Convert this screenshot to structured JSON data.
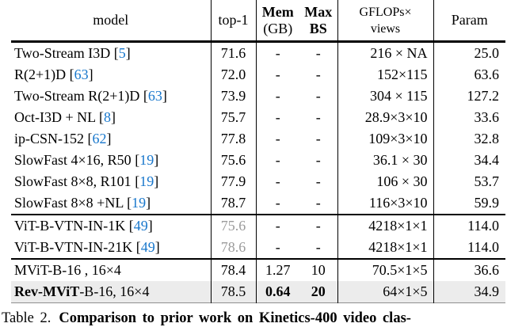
{
  "table": {
    "header": {
      "model": "model",
      "top1": "top-1",
      "mem_line1": "Mem",
      "mem_line2": "(GB)",
      "max_line1": "Max",
      "max_line2": "BS",
      "gflops_line1": "GFLOPs×",
      "gflops_line2": "views",
      "param": "Param"
    },
    "cite_brackets": {
      "open": "[",
      "close": "]"
    },
    "rows": [
      {
        "model": "Two-Stream I3D ",
        "cite": "5",
        "top1": "71.6",
        "mem": "-",
        "bs": "-",
        "gflops": "216 × NA",
        "param": "25.0"
      },
      {
        "model": "R(2+1)D ",
        "cite": "63",
        "top1": "72.0",
        "mem": "-",
        "bs": "-",
        "gflops": "152×115",
        "param": "63.6"
      },
      {
        "model": "Two-Stream R(2+1)D ",
        "cite": "63",
        "top1": "73.9",
        "mem": "-",
        "bs": "-",
        "gflops": "304 × 115",
        "param": "127.2"
      },
      {
        "model": "Oct-I3D + NL ",
        "cite": "8",
        "top1": "75.7",
        "mem": "-",
        "bs": "-",
        "gflops": "28.9×3×10",
        "param": "33.6"
      },
      {
        "model": "ip-CSN-152 ",
        "cite": "62",
        "top1": "77.8",
        "mem": "-",
        "bs": "-",
        "gflops": "109×3×10",
        "param": "32.8"
      },
      {
        "model": "SlowFast 4×16, R50 ",
        "cite": "19",
        "top1": "75.6",
        "mem": "-",
        "bs": "-",
        "gflops": "36.1 × 30",
        "param": "34.4"
      },
      {
        "model": "SlowFast 8×8, R101 ",
        "cite": "19",
        "top1": "77.9",
        "mem": "-",
        "bs": "-",
        "gflops": "106 × 30",
        "param": "53.7"
      },
      {
        "model": "SlowFast 8×8 +NL ",
        "cite": "19",
        "top1": "78.7",
        "mem": "-",
        "bs": "-",
        "gflops": "116×3×10",
        "param": "59.9",
        "rule_below": true
      },
      {
        "model": "ViT-B-VTN-IN-1K ",
        "cite": "49",
        "top1": "75.6",
        "top1_gray": true,
        "mem": "-",
        "bs": "-",
        "gflops": "4218×1×1",
        "param": "114.0"
      },
      {
        "model": "ViT-B-VTN-IN-21K ",
        "cite": "49",
        "top1": "78.6",
        "top1_gray": true,
        "mem": "-",
        "bs": "-",
        "gflops": "4218×1×1",
        "param": "114.0",
        "rule_below": true
      },
      {
        "model": "MViT-B-16 , 16×4",
        "cite": null,
        "top1": "78.4",
        "mem": "1.27",
        "bs": "10",
        "gflops": "70.5×1×5",
        "param": "36.6"
      },
      {
        "model_bold": "Rev-MViT",
        "model": "-B-16, 16×4",
        "cite": null,
        "top1": "78.5",
        "mem": "0.64",
        "mem_bold": true,
        "bs": "20",
        "bs_bold": true,
        "gflops": "64×1×5",
        "param": "34.9",
        "highlight": true
      }
    ],
    "caption_prefix": "Table 2.",
    "caption_bold": "Comparison to prior work on Kinetics-400 video clas-",
    "colors": {
      "cite_blue": "#1877cc",
      "muted_gray": "#9b9b9b",
      "highlight_bg": "#ececec"
    }
  }
}
